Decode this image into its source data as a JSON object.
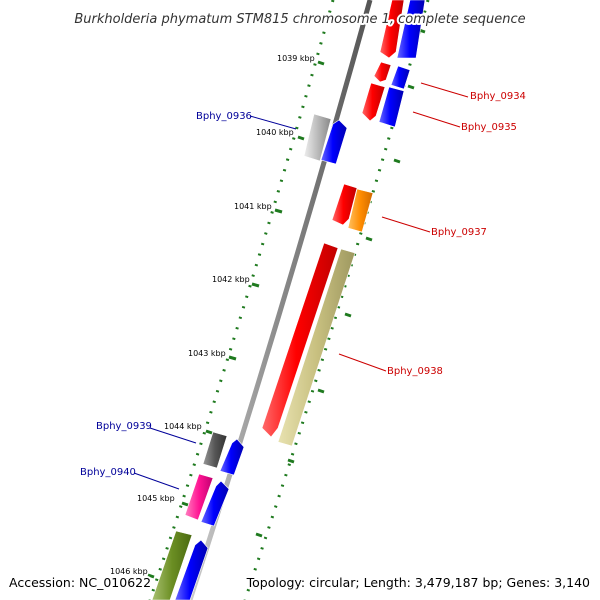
{
  "title": "Burkholderia phymatum STM815 chromosome 1, complete sequence",
  "footer": {
    "accession": "Accession: NC_010622",
    "summary": "Topology: circular; Length: 3,479,187 bp; Genes: 3,140"
  },
  "colors": {
    "backbone": "#8a8a8a",
    "tick_green": "#1f7a1f",
    "gene_red": "#ff0000",
    "gene_blue": "#0000ff",
    "label_red": "#cc0000",
    "label_blue": "#000099",
    "gene_orange": "#ff8c00",
    "gene_khaki": "#c8c080",
    "gene_gray": "#bbbbbb",
    "gene_darkgray": "#555555",
    "gene_magenta": "#ff1493",
    "gene_olive": "#6b8e23"
  },
  "kbp_labels": [
    "1039 kbp",
    "1040 kbp",
    "1041 kbp",
    "1042 kbp",
    "1043 kbp",
    "1044 kbp",
    "1045 kbp",
    "1046 kbp"
  ],
  "genes": [
    {
      "label": "Bphy_0934",
      "side": "right",
      "color_key": "label_red"
    },
    {
      "label": "Bphy_0935",
      "side": "right",
      "color_key": "label_red"
    },
    {
      "label": "Bphy_0936",
      "side": "left",
      "color_key": "label_blue"
    },
    {
      "label": "Bphy_0937",
      "side": "right",
      "color_key": "label_red"
    },
    {
      "label": "Bphy_0938",
      "side": "right",
      "color_key": "label_red"
    },
    {
      "label": "Bphy_0939",
      "side": "left",
      "color_key": "label_blue"
    },
    {
      "label": "Bphy_0940",
      "side": "left",
      "color_key": "label_blue"
    }
  ]
}
